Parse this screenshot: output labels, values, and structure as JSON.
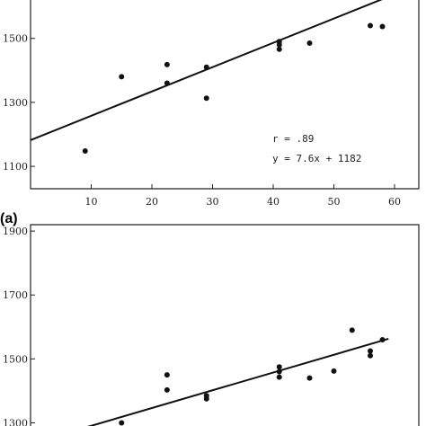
{
  "chart_data": [
    {
      "type": "scatter",
      "panel_label": "(a)",
      "x_ticks": [
        10,
        20,
        30,
        40,
        50,
        60
      ],
      "y_ticks": [
        1100,
        1300,
        1500
      ],
      "y_tick_labels": [
        "1100",
        "1300",
        "1500"
      ],
      "xlim": [
        0,
        64
      ],
      "ylim": [
        1030,
        1620
      ],
      "points": [
        {
          "x": 9,
          "y": 1148
        },
        {
          "x": 15,
          "y": 1380
        },
        {
          "x": 22.5,
          "y": 1418
        },
        {
          "x": 22.5,
          "y": 1360
        },
        {
          "x": 29,
          "y": 1410
        },
        {
          "x": 29,
          "y": 1313
        },
        {
          "x": 41,
          "y": 1490
        },
        {
          "x": 41,
          "y": 1480
        },
        {
          "x": 41,
          "y": 1466
        },
        {
          "x": 46,
          "y": 1485
        },
        {
          "x": 56,
          "y": 1540
        },
        {
          "x": 58,
          "y": 1537
        }
      ],
      "fit": {
        "slope": 7.6,
        "intercept": 1182,
        "x_range": [
          0,
          60
        ]
      },
      "annotations": [
        "r = .89",
        "y = 7.6x + 1182"
      ]
    },
    {
      "type": "scatter",
      "panel_label": "",
      "y_ticks": [
        1300,
        1500,
        1700,
        1900
      ],
      "y_tick_labels": [
        "1300",
        "1500",
        "1700",
        "1900"
      ],
      "xlim": [
        0,
        64
      ],
      "ylim": [
        1290,
        1920
      ],
      "points": [
        {
          "x": 15,
          "y": 1300
        },
        {
          "x": 22.5,
          "y": 1450
        },
        {
          "x": 22.5,
          "y": 1403
        },
        {
          "x": 29,
          "y": 1385
        },
        {
          "x": 29,
          "y": 1375
        },
        {
          "x": 41,
          "y": 1475
        },
        {
          "x": 41,
          "y": 1460
        },
        {
          "x": 41,
          "y": 1443
        },
        {
          "x": 46,
          "y": 1440
        },
        {
          "x": 50,
          "y": 1462
        },
        {
          "x": 53,
          "y": 1590
        },
        {
          "x": 56,
          "y": 1525
        },
        {
          "x": 56,
          "y": 1510
        },
        {
          "x": 58,
          "y": 1560
        }
      ],
      "fit": {
        "x_start": 9,
        "y_start": 1285,
        "x_end": 59,
        "y_end": 1563
      }
    }
  ]
}
